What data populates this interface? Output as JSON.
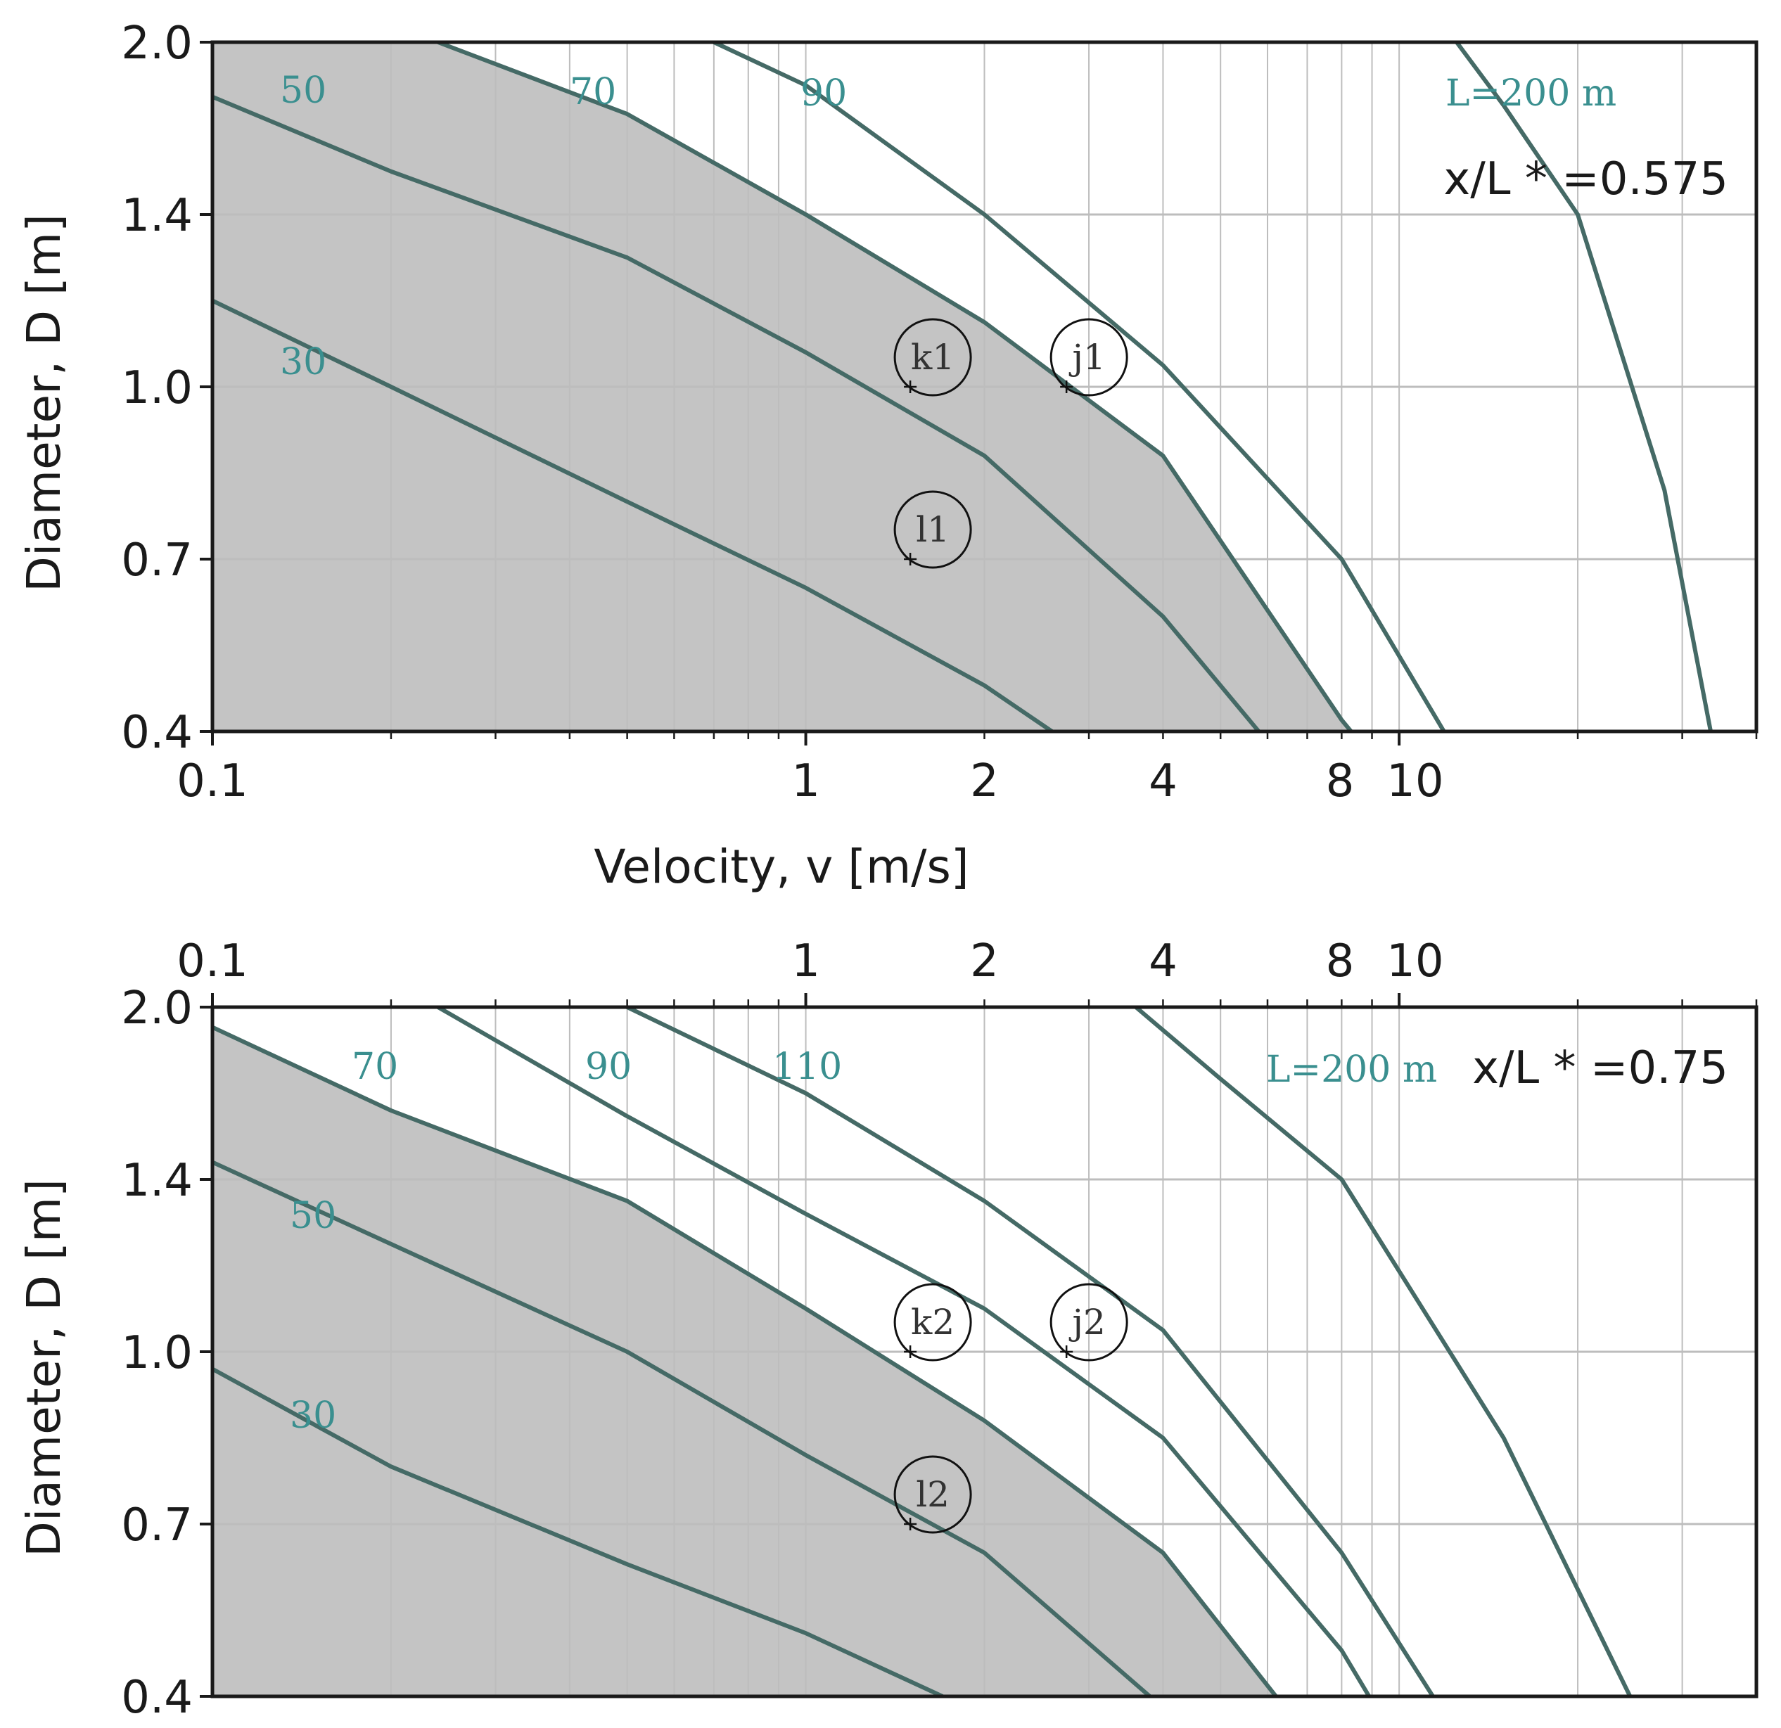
{
  "colors": {
    "curve": "#456a66",
    "curve_label": "#3a8f8f",
    "feasible_shade": "#c4c4c4",
    "grid": "#bdbdbd",
    "frame": "#1a1a1a"
  },
  "chart_data": [
    {
      "type": "line",
      "x_scale": "log",
      "xlim": [
        0.1,
        40
      ],
      "x_ticks": [
        0.1,
        1,
        2,
        4,
        8,
        10
      ],
      "x_ticklabels": [
        "0.1",
        "1",
        "2",
        "4",
        "8",
        "10"
      ],
      "x_ticks_side": "bottom",
      "ylim": [
        0.4,
        2.0
      ],
      "y_ticks": [
        0.4,
        0.7,
        1.0,
        1.4,
        2.0
      ],
      "y_ticklabels": [
        "0.4",
        "0.7",
        "1.0",
        "1.4",
        "2.0"
      ],
      "xlabel": "Velocity, v [m/s]",
      "ylabel": "Diameter, D [m]",
      "grid": true,
      "panel_label": "x/L * =0.575",
      "shaded_boundary_curve": "70",
      "series": [
        {
          "name": "30",
          "label": "30",
          "x": [
            0.1,
            0.2,
            0.5,
            1.0,
            2.0,
            2.6
          ],
          "y": [
            1.2,
            1.0,
            0.8,
            0.65,
            0.48,
            0.4
          ]
        },
        {
          "name": "50",
          "label": "50",
          "x": [
            0.1,
            0.2,
            0.5,
            1.0,
            2.0,
            4.0,
            5.8
          ],
          "y": [
            1.81,
            1.55,
            1.3,
            1.08,
            0.88,
            0.6,
            0.4
          ]
        },
        {
          "name": "70",
          "label": "70",
          "x": [
            0.24,
            0.5,
            1.0,
            2.0,
            4.0,
            8.0,
            8.3
          ],
          "y": [
            2.0,
            1.75,
            1.4,
            1.15,
            0.88,
            0.42,
            0.4
          ]
        },
        {
          "name": "90",
          "label": "90",
          "x": [
            0.7,
            1.0,
            2.0,
            4.0,
            8.0,
            11.9
          ],
          "y": [
            2.0,
            1.85,
            1.4,
            1.05,
            0.7,
            0.4
          ]
        },
        {
          "name": "L=200 m",
          "label": "L=200 m",
          "x": [
            12.5,
            15,
            20,
            28,
            33.5
          ],
          "y": [
            2.0,
            1.78,
            1.4,
            0.82,
            0.4
          ]
        }
      ],
      "points": [
        {
          "label": "k1",
          "v": 1.5,
          "D": 1.0
        },
        {
          "label": "j1",
          "v": 2.75,
          "D": 1.0
        },
        {
          "label": "l1",
          "v": 1.5,
          "D": 0.7
        }
      ]
    },
    {
      "type": "line",
      "x_scale": "log",
      "xlim": [
        0.1,
        40
      ],
      "x_ticks": [
        0.1,
        1,
        2,
        4,
        8,
        10
      ],
      "x_ticklabels": [
        "0.1",
        "1",
        "2",
        "4",
        "8",
        "10"
      ],
      "x_ticks_side": "top",
      "ylim": [
        0.4,
        2.0
      ],
      "y_ticks": [
        0.4,
        0.7,
        1.0,
        1.4,
        2.0
      ],
      "y_ticklabels": [
        "0.4",
        "0.7",
        "1.0",
        "1.4",
        "2.0"
      ],
      "xlabel": "",
      "ylabel": "Diameter, D [m]",
      "grid": true,
      "panel_label": "x/L * =0.75",
      "shaded_boundary_curve": "70",
      "series": [
        {
          "name": "30",
          "label": "30",
          "x": [
            0.1,
            0.2,
            0.5,
            1.0,
            1.7
          ],
          "y": [
            0.97,
            0.8,
            0.63,
            0.51,
            0.4
          ]
        },
        {
          "name": "50",
          "label": "50",
          "x": [
            0.1,
            0.2,
            0.5,
            1.0,
            2.0,
            3.8
          ],
          "y": [
            1.46,
            1.25,
            1.0,
            0.82,
            0.65,
            0.4
          ]
        },
        {
          "name": "70",
          "label": "70",
          "x": [
            0.1,
            0.2,
            0.5,
            1.0,
            2.0,
            4.0,
            6.2
          ],
          "y": [
            1.93,
            1.64,
            1.35,
            1.1,
            0.88,
            0.65,
            0.4
          ]
        },
        {
          "name": "90",
          "label": "90",
          "x": [
            0.24,
            0.5,
            1.0,
            2.0,
            4.0,
            8.0,
            8.9
          ],
          "y": [
            2.0,
            1.62,
            1.32,
            1.1,
            0.85,
            0.48,
            0.4
          ]
        },
        {
          "name": "110",
          "label": "110",
          "x": [
            0.5,
            1.0,
            2.0,
            4.0,
            8.0,
            11.4
          ],
          "y": [
            2.0,
            1.7,
            1.35,
            1.05,
            0.65,
            0.4
          ]
        },
        {
          "name": "L=200 m",
          "label": "L=200 m",
          "x": [
            3.6,
            5,
            8,
            15,
            24.5
          ],
          "y": [
            2.0,
            1.75,
            1.4,
            0.85,
            0.4
          ]
        }
      ],
      "points": [
        {
          "label": "k2",
          "v": 1.5,
          "D": 1.0
        },
        {
          "label": "j2",
          "v": 2.75,
          "D": 1.0
        },
        {
          "label": "l2",
          "v": 1.5,
          "D": 0.7
        }
      ]
    }
  ]
}
